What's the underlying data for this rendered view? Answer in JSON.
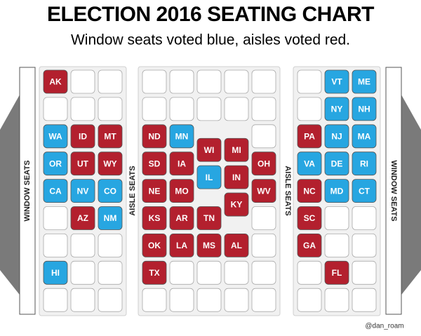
{
  "header": {
    "title": "ELECTION 2016 SEATING CHART",
    "subtitle": "Window seats voted blue, aisles voted red."
  },
  "side_labels": {
    "left_window": "WINDOW SEATS",
    "left_aisle": "AISLE SEATS",
    "right_aisle": "AISLE SEATS",
    "right_window": "WINDOW SEATS"
  },
  "blocks": [
    {
      "columns": [
        [
          {
            "label": "AK",
            "color": "#b3202e"
          },
          null,
          {
            "label": "WA",
            "color": "#27a6e1"
          },
          {
            "label": "OR",
            "color": "#27a6e1"
          },
          {
            "label": "CA",
            "color": "#27a6e1"
          },
          null,
          null,
          {
            "label": "HI",
            "color": "#27a6e1"
          },
          null
        ],
        [
          null,
          null,
          {
            "label": "ID",
            "color": "#b3202e"
          },
          {
            "label": "UT",
            "color": "#b3202e"
          },
          {
            "label": "NV",
            "color": "#27a6e1"
          },
          {
            "label": "AZ",
            "color": "#b3202e"
          },
          null,
          null,
          null
        ],
        [
          null,
          null,
          {
            "label": "MT",
            "color": "#b3202e"
          },
          {
            "label": "WY",
            "color": "#b3202e"
          },
          {
            "label": "CO",
            "color": "#27a6e1"
          },
          {
            "label": "NM",
            "color": "#27a6e1"
          },
          null,
          null,
          null
        ]
      ]
    },
    {
      "columns": [
        [
          null,
          null,
          {
            "label": "ND",
            "color": "#b3202e"
          },
          {
            "label": "SD",
            "color": "#b3202e"
          },
          {
            "label": "NE",
            "color": "#b3202e"
          },
          {
            "label": "KS",
            "color": "#b3202e"
          },
          {
            "label": "OK",
            "color": "#b3202e"
          },
          {
            "label": "TX",
            "color": "#b3202e"
          },
          null
        ],
        [
          null,
          null,
          {
            "label": "MN",
            "color": "#27a6e1"
          },
          {
            "label": "IA",
            "color": "#b3202e"
          },
          {
            "label": "MO",
            "color": "#b3202e"
          },
          {
            "label": "AR",
            "color": "#b3202e"
          },
          {
            "label": "LA",
            "color": "#b3202e"
          },
          null,
          null
        ],
        [
          null,
          null,
          {
            "label": "WI",
            "color": "#b3202e"
          },
          {
            "label": "IL",
            "color": "#27a6e1"
          },
          {
            "label": "TN",
            "color": "#b3202e"
          },
          {
            "label": "MS",
            "color": "#b3202e"
          },
          null,
          null
        ],
        [
          null,
          null,
          {
            "label": "MI",
            "color": "#b3202e"
          },
          {
            "label": "IN",
            "color": "#b3202e"
          },
          {
            "label": "KY",
            "color": "#b3202e"
          },
          {
            "label": "AL",
            "color": "#b3202e"
          },
          null,
          null
        ],
        [
          null,
          null,
          null,
          {
            "label": "OH",
            "color": "#b3202e"
          },
          {
            "label": "WV",
            "color": "#b3202e"
          },
          null,
          null,
          null,
          null
        ]
      ]
    },
    {
      "columns": [
        [
          null,
          null,
          {
            "label": "PA",
            "color": "#b3202e"
          },
          {
            "label": "VA",
            "color": "#27a6e1"
          },
          {
            "label": "NC",
            "color": "#b3202e"
          },
          {
            "label": "SC",
            "color": "#b3202e"
          },
          {
            "label": "GA",
            "color": "#b3202e"
          },
          null,
          null
        ],
        [
          {
            "label": "VT",
            "color": "#27a6e1"
          },
          {
            "label": "NY",
            "color": "#27a6e1"
          },
          {
            "label": "NJ",
            "color": "#27a6e1"
          },
          {
            "label": "DE",
            "color": "#27a6e1"
          },
          {
            "label": "MD",
            "color": "#27a6e1"
          },
          null,
          null,
          {
            "label": "FL",
            "color": "#b3202e"
          },
          null
        ],
        [
          {
            "label": "ME",
            "color": "#27a6e1"
          },
          {
            "label": "NH",
            "color": "#27a6e1"
          },
          {
            "label": "MA",
            "color": "#27a6e1"
          },
          {
            "label": "RI",
            "color": "#27a6e1"
          },
          {
            "label": "CT",
            "color": "#27a6e1"
          },
          null,
          null,
          null,
          null
        ]
      ]
    }
  ],
  "credit": "@dan_roam"
}
